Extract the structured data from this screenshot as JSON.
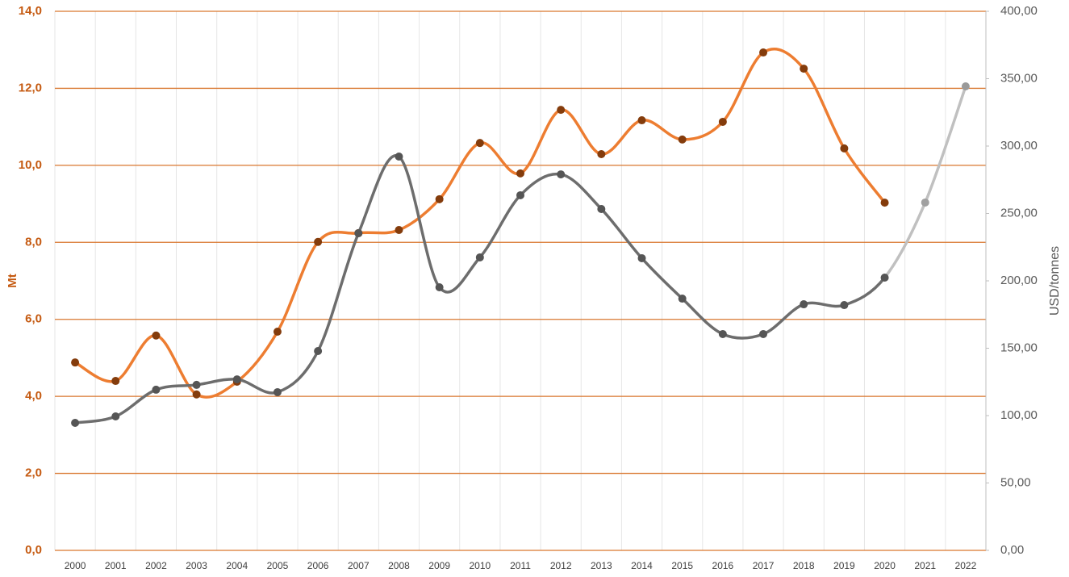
{
  "chart_data": {
    "type": "line",
    "y_label": "Mt",
    "y2_label": "USD/tonnes",
    "categories": [
      "2000",
      "2001",
      "2002",
      "2003",
      "2004",
      "2005",
      "2006",
      "2007",
      "2008",
      "2009",
      "2010",
      "2011",
      "2012",
      "2013",
      "2014",
      "2015",
      "2016",
      "2017",
      "2018",
      "2019",
      "2020",
      "2021",
      "2022"
    ],
    "ylim": [
      0,
      14
    ],
    "yticks": [
      {
        "value": 0,
        "label": "0,0"
      },
      {
        "value": 2,
        "label": "2,0"
      },
      {
        "value": 4,
        "label": "4,0"
      },
      {
        "value": 6,
        "label": "6,0"
      },
      {
        "value": 8,
        "label": "8,0"
      },
      {
        "value": 10,
        "label": "10,0"
      },
      {
        "value": 12,
        "label": "12,0"
      },
      {
        "value": 14,
        "label": "14,0"
      }
    ],
    "y2lim": [
      0,
      400
    ],
    "y2ticks": [
      {
        "value": 0,
        "label": "0,00"
      },
      {
        "value": 50,
        "label": "50,00"
      },
      {
        "value": 100,
        "label": "100,00"
      },
      {
        "value": 150,
        "label": "150,00"
      },
      {
        "value": 200,
        "label": "200,00"
      },
      {
        "value": 250,
        "label": "250,00"
      },
      {
        "value": 300,
        "label": "300,00"
      },
      {
        "value": 350,
        "label": "350,00"
      },
      {
        "value": 400,
        "label": "400,00"
      }
    ],
    "grid": true,
    "grid_color": "#d9772f",
    "smooth": true,
    "series": [
      {
        "color": "#ed7d31",
        "marker_color": "#843c0c",
        "values": [
          4.88,
          4.4,
          5.58,
          4.05,
          4.38,
          5.68,
          8.01,
          8.24,
          8.32,
          9.12,
          10.58,
          9.79,
          11.44,
          10.29,
          11.17,
          10.67,
          11.13,
          12.93,
          12.51,
          10.44,
          9.03,
          null,
          null
        ]
      },
      {
        "color": "#6d6d6d",
        "marker_color": "#555555",
        "axis": "y2",
        "line_colors": [
          null,
          null,
          null,
          null,
          null,
          null,
          null,
          null,
          null,
          null,
          null,
          null,
          null,
          null,
          null,
          null,
          null,
          null,
          null,
          null,
          null,
          "#c0c0c0",
          "#c0c0c0"
        ],
        "marker_colors": [
          null,
          null,
          null,
          null,
          null,
          null,
          null,
          null,
          null,
          null,
          null,
          null,
          null,
          null,
          null,
          null,
          null,
          null,
          null,
          null,
          null,
          "#a0a0a0",
          "#9a9a9a"
        ],
        "values": [
          94.6,
          99.4,
          119.2,
          122.8,
          126.9,
          117.4,
          147.9,
          235.3,
          292.2,
          195.2,
          217.4,
          263.5,
          279.0,
          253.3,
          216.8,
          186.8,
          160.5,
          160.5,
          182.6,
          182.0,
          202.4,
          258.1,
          344.3
        ]
      }
    ]
  }
}
